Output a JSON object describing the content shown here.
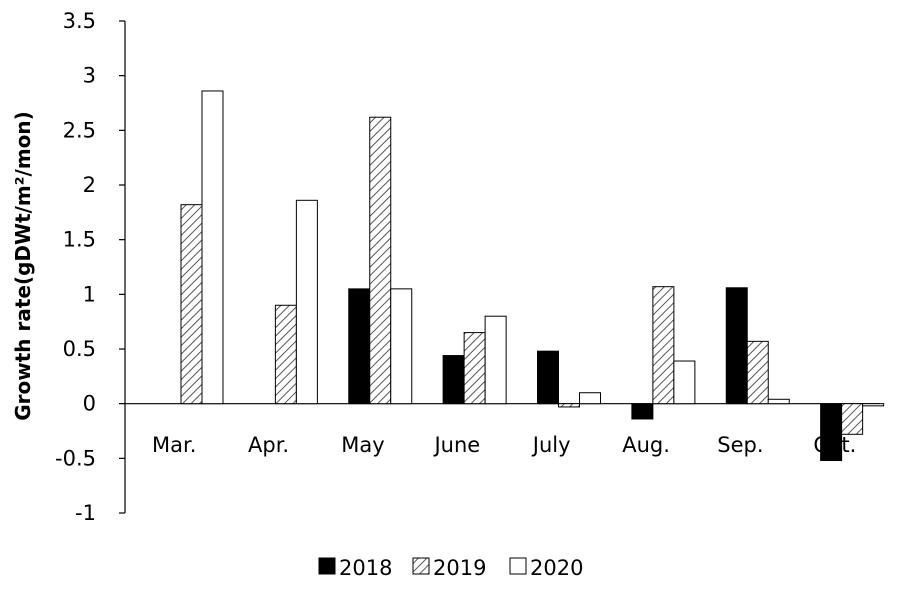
{
  "chart_data": {
    "type": "bar",
    "ylabel": "Growth rate(gDWt/m²/mon)",
    "ylim": [
      -1,
      3.5
    ],
    "yticks": [
      "3.5",
      "3",
      "2.5",
      "2",
      "1.5",
      "1",
      "0.5",
      "0",
      "-0.5",
      "-1"
    ],
    "categories": [
      "Mar.",
      "Apr.",
      "May",
      "June",
      "July",
      "Aug.",
      "Sep.",
      "Oct."
    ],
    "series": [
      {
        "name": "2018",
        "pattern": "solid",
        "values": [
          null,
          null,
          1.05,
          0.44,
          0.48,
          -0.14,
          1.06,
          -0.52
        ]
      },
      {
        "name": "2019",
        "pattern": "hatch",
        "values": [
          1.82,
          0.9,
          2.62,
          0.65,
          -0.03,
          1.07,
          0.57,
          -0.28
        ]
      },
      {
        "name": "2020",
        "pattern": "white",
        "values": [
          2.86,
          1.86,
          1.05,
          0.8,
          0.1,
          0.39,
          0.04,
          -0.02
        ]
      }
    ],
    "grid": false,
    "legend_position": "bottom-center"
  },
  "colors": {
    "solid": "#000000",
    "outline": "#000000",
    "hatch_line": "#555555",
    "white": "#ffffff"
  }
}
